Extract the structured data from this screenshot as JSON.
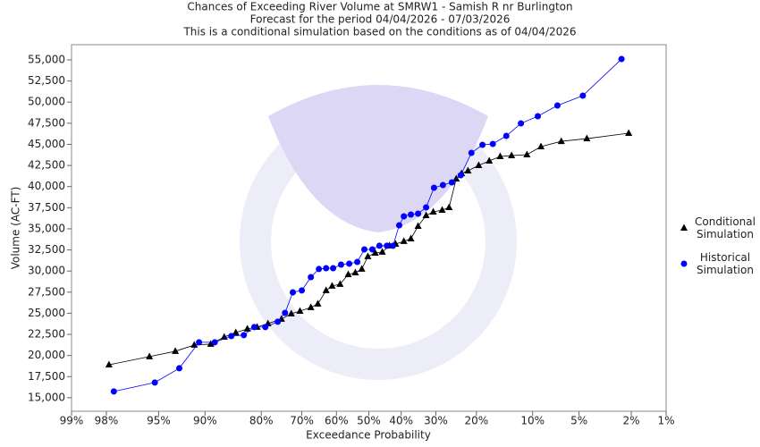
{
  "chart_data": {
    "type": "line",
    "title": "Chances of Exceeding River Volume at SMRW1 - Samish R nr Burlington",
    "subtitle": [
      "Forecast for the period 04/04/2026 - 07/03/2026",
      "This is a conditional simulation based on the conditions as of 04/04/2026"
    ],
    "xlabel": "Exceedance Probability",
    "ylabel": "Volume (AC-FT)",
    "xscale": "probability",
    "xlim": [
      99,
      1
    ],
    "xticks": [
      {
        "value": 99,
        "label": "99%"
      },
      {
        "value": 98,
        "label": "98%"
      },
      {
        "value": 95,
        "label": "95%"
      },
      {
        "value": 90,
        "label": "90%"
      },
      {
        "value": 80,
        "label": "80%"
      },
      {
        "value": 70,
        "label": "70%"
      },
      {
        "value": 60,
        "label": "60%"
      },
      {
        "value": 50,
        "label": "50%"
      },
      {
        "value": 40,
        "label": "40%"
      },
      {
        "value": 30,
        "label": "30%"
      },
      {
        "value": 20,
        "label": "20%"
      },
      {
        "value": 10,
        "label": "10%"
      },
      {
        "value": 5,
        "label": "5%"
      },
      {
        "value": 2,
        "label": "2%"
      },
      {
        "value": 1,
        "label": "1%"
      }
    ],
    "ylim": [
      13400,
      56800
    ],
    "yticks": [
      {
        "value": 15000,
        "label": "15,000"
      },
      {
        "value": 17500,
        "label": "17,500"
      },
      {
        "value": 20000,
        "label": "20,000"
      },
      {
        "value": 22500,
        "label": "22,500"
      },
      {
        "value": 25000,
        "label": "25,000"
      },
      {
        "value": 27500,
        "label": "27,500"
      },
      {
        "value": 30000,
        "label": "30,000"
      },
      {
        "value": 32500,
        "label": "32,500"
      },
      {
        "value": 35000,
        "label": "35,000"
      },
      {
        "value": 37500,
        "label": "37,500"
      },
      {
        "value": 40000,
        "label": "40,000"
      },
      {
        "value": 42500,
        "label": "42,500"
      },
      {
        "value": 45000,
        "label": "45,000"
      },
      {
        "value": 47500,
        "label": "47,500"
      },
      {
        "value": 50000,
        "label": "50,000"
      },
      {
        "value": 52500,
        "label": "52,500"
      },
      {
        "value": 55000,
        "label": "55,000"
      }
    ],
    "grid": false,
    "legend": "right",
    "series": [
      {
        "name": "Conditional Simulation",
        "color": "#000000",
        "marker": "triangle",
        "x": [
          97.9,
          95.7,
          93.5,
          91.4,
          89.2,
          87.1,
          85.1,
          82.9,
          80.9,
          78.5,
          75.3,
          72.8,
          70.5,
          67.5,
          65.5,
          63.1,
          61.3,
          58.9,
          56.4,
          54.2,
          52.2,
          50.3,
          48.0,
          45.8,
          43.6,
          41.7,
          39.2,
          37.1,
          35.0,
          32.7,
          30.7,
          28.3,
          26.5,
          24.7,
          23.4,
          21.9,
          19.5,
          17.3,
          15.2,
          13.2,
          10.8,
          8.9,
          6.6,
          4.4,
          2.1
        ],
        "values": [
          18900,
          19870,
          20500,
          21240,
          21350,
          22190,
          22720,
          23150,
          23360,
          23780,
          24310,
          24950,
          25260,
          25690,
          26110,
          27700,
          28230,
          28440,
          29600,
          29810,
          30240,
          31720,
          32140,
          32250,
          32990,
          33200,
          33520,
          33830,
          35310,
          36580,
          37010,
          37220,
          37540,
          40920,
          41560,
          41870,
          42510,
          43040,
          43570,
          43670,
          43780,
          44730,
          45360,
          45680,
          46320
        ]
      },
      {
        "name": "Historical Simulation",
        "color": "#0000ff",
        "marker": "circle",
        "x": [
          97.7,
          95.3,
          93.1,
          90.8,
          88.6,
          85.9,
          83.6,
          81.5,
          79.1,
          76.2,
          74.4,
          72.4,
          70.0,
          67.5,
          65.2,
          63.1,
          61.0,
          58.6,
          56.1,
          53.6,
          51.4,
          48.9,
          46.7,
          44.4,
          42.5,
          40.6,
          39.2,
          37.1,
          35.0,
          32.7,
          30.5,
          28.1,
          25.8,
          23.6,
          21.1,
          18.7,
          16.6,
          14.1,
          11.7,
          9.3,
          7.0,
          4.7,
          2.4
        ],
        "values": [
          15740,
          16800,
          18490,
          21560,
          21560,
          22300,
          22410,
          23360,
          23360,
          24000,
          25050,
          27480,
          27700,
          29280,
          30240,
          30340,
          30340,
          30760,
          30870,
          31080,
          32560,
          32560,
          32990,
          32990,
          32990,
          35420,
          36480,
          36690,
          36790,
          37540,
          39860,
          40180,
          40500,
          41340,
          43990,
          44940,
          45050,
          46000,
          47480,
          48330,
          49600,
          50760,
          55100
        ]
      }
    ]
  }
}
